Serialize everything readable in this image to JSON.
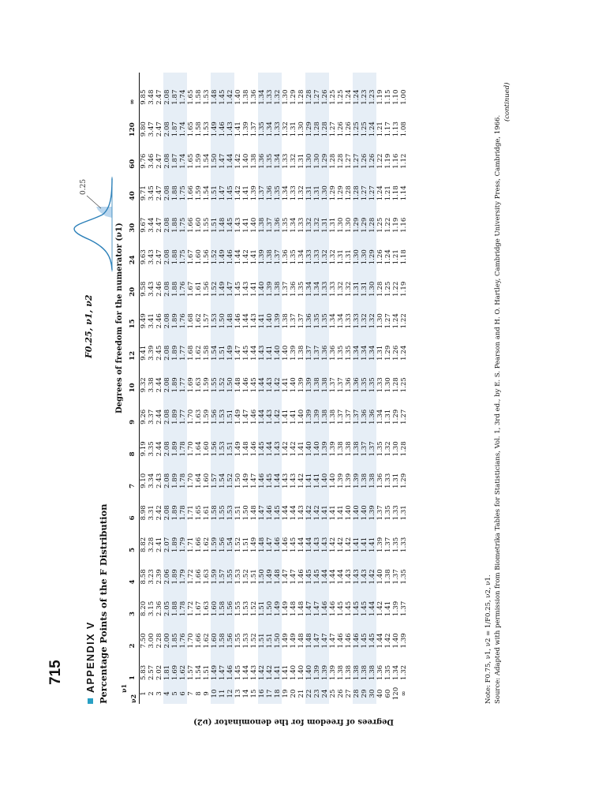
{
  "page_number": "715",
  "appendix_label": "APPENDIX V",
  "title": "Percentage Points of the F Distribution",
  "distribution_label": "F0.25, ν1, ν2",
  "curve_label": "0.25",
  "numerator_heading": "Degrees of freedom for the numerator (ν1)",
  "denominator_heading": "Degrees of freedom for the denominator (ν2)",
  "corner_top": "ν1",
  "corner_bottom": "ν2",
  "columns": [
    "1",
    "2",
    "3",
    "4",
    "5",
    "6",
    "7",
    "8",
    "9",
    "10",
    "12",
    "15",
    "20",
    "24",
    "30",
    "40",
    "60",
    "120",
    "∞"
  ],
  "rows": [
    {
      "nu2": "1",
      "v": [
        "5.83",
        "7.50",
        "8.20",
        "8.58",
        "8.82",
        "8.98",
        "9.10",
        "9.19",
        "9.26",
        "9.32",
        "9.41",
        "9.49",
        "9.58",
        "9.63",
        "9.67",
        "9.71",
        "9.76",
        "9.80",
        "9.85"
      ]
    },
    {
      "nu2": "2",
      "v": [
        "2.57",
        "3.00",
        "3.15",
        "3.23",
        "3.28",
        "3.31",
        "3.34",
        "3.35",
        "3.37",
        "3.38",
        "3.39",
        "3.41",
        "3.43",
        "3.43",
        "3.44",
        "3.45",
        "3.46",
        "3.47",
        "3.48"
      ]
    },
    {
      "nu2": "3",
      "v": [
        "2.02",
        "2.28",
        "2.36",
        "2.39",
        "2.41",
        "2.42",
        "2.43",
        "2.44",
        "2.44",
        "2.44",
        "2.45",
        "2.46",
        "2.46",
        "2.47",
        "2.47",
        "2.47",
        "2.47",
        "2.47",
        "2.47"
      ]
    },
    {
      "nu2": "4",
      "v": [
        "1.81",
        "2.00",
        "2.05",
        "2.06",
        "2.07",
        "2.08",
        "2.08",
        "2.08",
        "2.08",
        "2.08",
        "2.08",
        "2.08",
        "2.08",
        "2.08",
        "2.08",
        "2.08",
        "2.08",
        "2.08",
        "2.08"
      ]
    },
    {
      "nu2": "5",
      "v": [
        "1.69",
        "1.85",
        "1.88",
        "1.89",
        "1.89",
        "1.89",
        "1.89",
        "1.89",
        "1.89",
        "1.89",
        "1.89",
        "1.89",
        "1.88",
        "1.88",
        "1.88",
        "1.88",
        "1.87",
        "1.87",
        "1.87"
      ]
    },
    {
      "nu2": "6",
      "v": [
        "1.62",
        "1.76",
        "1.78",
        "1.79",
        "1.79",
        "1.78",
        "1.78",
        "1.78",
        "1.77",
        "1.77",
        "1.77",
        "1.76",
        "1.76",
        "1.75",
        "1.75",
        "1.75",
        "1.74",
        "1.74",
        "1.74"
      ]
    },
    {
      "nu2": "7",
      "v": [
        "1.57",
        "1.70",
        "1.72",
        "1.72",
        "1.71",
        "1.71",
        "1.70",
        "1.70",
        "1.70",
        "1.69",
        "1.68",
        "1.68",
        "1.67",
        "1.67",
        "1.66",
        "1.66",
        "1.65",
        "1.65",
        "1.65"
      ]
    },
    {
      "nu2": "8",
      "v": [
        "1.54",
        "1.66",
        "1.67",
        "1.66",
        "1.66",
        "1.65",
        "1.64",
        "1.64",
        "1.63",
        "1.63",
        "1.62",
        "1.62",
        "1.61",
        "1.60",
        "1.60",
        "1.59",
        "1.59",
        "1.58",
        "1.58"
      ]
    },
    {
      "nu2": "9",
      "v": [
        "1.51",
        "1.62",
        "1.63",
        "1.63",
        "1.62",
        "1.61",
        "1.60",
        "1.60",
        "1.59",
        "1.59",
        "1.58",
        "1.57",
        "1.56",
        "1.56",
        "1.55",
        "1.54",
        "1.54",
        "1.53",
        "1.53"
      ]
    },
    {
      "nu2": "10",
      "v": [
        "1.49",
        "1.60",
        "1.60",
        "1.59",
        "1.59",
        "1.58",
        "1.57",
        "1.56",
        "1.56",
        "1.55",
        "1.54",
        "1.53",
        "1.52",
        "1.52",
        "1.51",
        "1.51",
        "1.50",
        "1.49",
        "1.48"
      ]
    },
    {
      "nu2": "11",
      "v": [
        "1.47",
        "1.58",
        "1.58",
        "1.57",
        "1.56",
        "1.55",
        "1.54",
        "1.53",
        "1.53",
        "1.52",
        "1.51",
        "1.50",
        "1.49",
        "1.49",
        "1.48",
        "1.47",
        "1.47",
        "1.46",
        "1.45"
      ]
    },
    {
      "nu2": "12",
      "v": [
        "1.46",
        "1.56",
        "1.56",
        "1.55",
        "1.54",
        "1.53",
        "1.52",
        "1.51",
        "1.51",
        "1.50",
        "1.49",
        "1.48",
        "1.47",
        "1.46",
        "1.45",
        "1.45",
        "1.44",
        "1.43",
        "1.42"
      ]
    },
    {
      "nu2": "13",
      "v": [
        "1.45",
        "1.55",
        "1.55",
        "1.53",
        "1.52",
        "1.51",
        "1.50",
        "1.49",
        "1.49",
        "1.48",
        "1.47",
        "1.46",
        "1.45",
        "1.44",
        "1.43",
        "1.42",
        "1.42",
        "1.41",
        "1.40"
      ]
    },
    {
      "nu2": "14",
      "v": [
        "1.44",
        "1.53",
        "1.53",
        "1.52",
        "1.51",
        "1.50",
        "1.49",
        "1.48",
        "1.47",
        "1.46",
        "1.45",
        "1.44",
        "1.43",
        "1.42",
        "1.41",
        "1.41",
        "1.40",
        "1.39",
        "1.38"
      ]
    },
    {
      "nu2": "15",
      "v": [
        "1.43",
        "1.52",
        "1.52",
        "1.51",
        "1.49",
        "1.48",
        "1.47",
        "1.46",
        "1.46",
        "1.45",
        "1.44",
        "1.43",
        "1.41",
        "1.41",
        "1.40",
        "1.39",
        "1.38",
        "1.37",
        "1.36"
      ]
    },
    {
      "nu2": "16",
      "v": [
        "1.42",
        "1.51",
        "1.51",
        "1.50",
        "1.48",
        "1.47",
        "1.46",
        "1.45",
        "1.44",
        "1.44",
        "1.43",
        "1.41",
        "1.40",
        "1.39",
        "1.38",
        "1.37",
        "1.36",
        "1.35",
        "1.34"
      ]
    },
    {
      "nu2": "17",
      "v": [
        "1.42",
        "1.51",
        "1.50",
        "1.49",
        "1.47",
        "1.46",
        "1.45",
        "1.44",
        "1.43",
        "1.43",
        "1.41",
        "1.40",
        "1.39",
        "1.38",
        "1.37",
        "1.36",
        "1.35",
        "1.34",
        "1.33"
      ]
    },
    {
      "nu2": "18",
      "v": [
        "1.41",
        "1.50",
        "1.49",
        "1.48",
        "1.46",
        "1.45",
        "1.44",
        "1.43",
        "1.42",
        "1.42",
        "1.40",
        "1.39",
        "1.38",
        "1.37",
        "1.36",
        "1.35",
        "1.34",
        "1.33",
        "1.32"
      ]
    },
    {
      "nu2": "19",
      "v": [
        "1.41",
        "1.49",
        "1.49",
        "1.47",
        "1.46",
        "1.44",
        "1.43",
        "1.42",
        "1.41",
        "1.41",
        "1.40",
        "1.38",
        "1.37",
        "1.36",
        "1.35",
        "1.34",
        "1.33",
        "1.32",
        "1.30"
      ]
    },
    {
      "nu2": "20",
      "v": [
        "1.40",
        "1.49",
        "1.48",
        "1.47",
        "1.45",
        "1.44",
        "1.43",
        "1.42",
        "1.41",
        "1.40",
        "1.39",
        "1.37",
        "1.36",
        "1.35",
        "1.34",
        "1.33",
        "1.32",
        "1.31",
        "1.29"
      ]
    },
    {
      "nu2": "21",
      "v": [
        "1.40",
        "1.48",
        "1.48",
        "1.46",
        "1.44",
        "1.43",
        "1.42",
        "1.41",
        "1.40",
        "1.39",
        "1.38",
        "1.37",
        "1.35",
        "1.34",
        "1.33",
        "1.32",
        "1.31",
        "1.30",
        "1.28"
      ]
    },
    {
      "nu2": "22",
      "v": [
        "1.40",
        "1.48",
        "1.47",
        "1.45",
        "1.44",
        "1.42",
        "1.41",
        "1.40",
        "1.39",
        "1.39",
        "1.37",
        "1.36",
        "1.34",
        "1.33",
        "1.32",
        "1.31",
        "1.30",
        "1.29",
        "1.28"
      ]
    },
    {
      "nu2": "23",
      "v": [
        "1.39",
        "1.47",
        "1.47",
        "1.45",
        "1.43",
        "1.42",
        "1.41",
        "1.40",
        "1.39",
        "1.38",
        "1.37",
        "1.35",
        "1.34",
        "1.33",
        "1.32",
        "1.31",
        "1.30",
        "1.28",
        "1.27"
      ]
    },
    {
      "nu2": "24",
      "v": [
        "1.39",
        "1.47",
        "1.46",
        "1.44",
        "1.43",
        "1.41",
        "1.40",
        "1.39",
        "1.38",
        "1.38",
        "1.36",
        "1.35",
        "1.33",
        "1.32",
        "1.31",
        "1.30",
        "1.29",
        "1.28",
        "1.26"
      ]
    },
    {
      "nu2": "25",
      "v": [
        "1.39",
        "1.47",
        "1.46",
        "1.44",
        "1.42",
        "1.41",
        "1.40",
        "1.39",
        "1.38",
        "1.37",
        "1.36",
        "1.34",
        "1.33",
        "1.32",
        "1.31",
        "1.29",
        "1.28",
        "1.27",
        "1.25"
      ]
    },
    {
      "nu2": "26",
      "v": [
        "1.38",
        "1.46",
        "1.45",
        "1.44",
        "1.42",
        "1.41",
        "1.39",
        "1.38",
        "1.37",
        "1.37",
        "1.35",
        "1.34",
        "1.32",
        "1.31",
        "1.30",
        "1.29",
        "1.28",
        "1.26",
        "1.25"
      ]
    },
    {
      "nu2": "27",
      "v": [
        "1.38",
        "1.46",
        "1.45",
        "1.43",
        "1.42",
        "1.40",
        "1.39",
        "1.38",
        "1.37",
        "1.36",
        "1.35",
        "1.33",
        "1.32",
        "1.31",
        "1.30",
        "1.28",
        "1.27",
        "1.26",
        "1.24"
      ]
    },
    {
      "nu2": "28",
      "v": [
        "1.38",
        "1.46",
        "1.45",
        "1.43",
        "1.41",
        "1.40",
        "1.39",
        "1.38",
        "1.37",
        "1.36",
        "1.34",
        "1.33",
        "1.31",
        "1.30",
        "1.29",
        "1.28",
        "1.27",
        "1.25",
        "1.24"
      ]
    },
    {
      "nu2": "29",
      "v": [
        "1.38",
        "1.45",
        "1.45",
        "1.43",
        "1.41",
        "1.40",
        "1.38",
        "1.37",
        "1.36",
        "1.35",
        "1.34",
        "1.32",
        "1.31",
        "1.30",
        "1.29",
        "1.27",
        "1.26",
        "1.25",
        "1.23"
      ]
    },
    {
      "nu2": "30",
      "v": [
        "1.38",
        "1.45",
        "1.44",
        "1.42",
        "1.41",
        "1.39",
        "1.38",
        "1.37",
        "1.36",
        "1.35",
        "1.34",
        "1.32",
        "1.30",
        "1.29",
        "1.28",
        "1.27",
        "1.26",
        "1.24",
        "1.23"
      ]
    },
    {
      "nu2": "40",
      "v": [
        "1.36",
        "1.44",
        "1.42",
        "1.40",
        "1.39",
        "1.37",
        "1.36",
        "1.35",
        "1.34",
        "1.33",
        "1.31",
        "1.30",
        "1.28",
        "1.26",
        "1.25",
        "1.24",
        "1.22",
        "1.21",
        "1.19"
      ]
    },
    {
      "nu2": "60",
      "v": [
        "1.35",
        "1.42",
        "1.41",
        "1.38",
        "1.37",
        "1.35",
        "1.33",
        "1.32",
        "1.31",
        "1.30",
        "1.29",
        "1.27",
        "1.25",
        "1.24",
        "1.22",
        "1.21",
        "1.19",
        "1.17",
        "1.15"
      ]
    },
    {
      "nu2": "120",
      "v": [
        "1.34",
        "1.40",
        "1.39",
        "1.37",
        "1.35",
        "1.33",
        "1.31",
        "1.30",
        "1.29",
        "1.28",
        "1.26",
        "1.24",
        "1.22",
        "1.21",
        "1.19",
        "1.18",
        "1.16",
        "1.13",
        "1.10"
      ]
    },
    {
      "nu2": "∞",
      "v": [
        "1.32",
        "1.39",
        "1.37",
        "1.35",
        "1.33",
        "1.31",
        "1.29",
        "1.28",
        "1.27",
        "1.25",
        "1.24",
        "1.22",
        "1.19",
        "1.18",
        "1.16",
        "1.14",
        "1.12",
        "1.08",
        "1.00"
      ]
    }
  ],
  "shaded_rows": [
    "4",
    "5",
    "6",
    "10",
    "11",
    "12",
    "16",
    "17",
    "18",
    "22",
    "23",
    "24",
    "28",
    "29",
    "30"
  ],
  "note": "Note: F0.75, ν1, ν2 = 1/F0.25, ν2, ν1.",
  "source": "Source: Adapted with permission from Biometrika Tables for Statisticians, Vol. 1, 3rd ed., by E. S. Pearson and H. O. Hartley, Cambridge University Press, Cambridge, 1966.",
  "continued": "(continued)",
  "colors": {
    "accent_square": "#29a0c4",
    "row_shade": "#e6eef6",
    "curve": "#2a7fb8",
    "tail_fill": "#b9d6ee"
  }
}
